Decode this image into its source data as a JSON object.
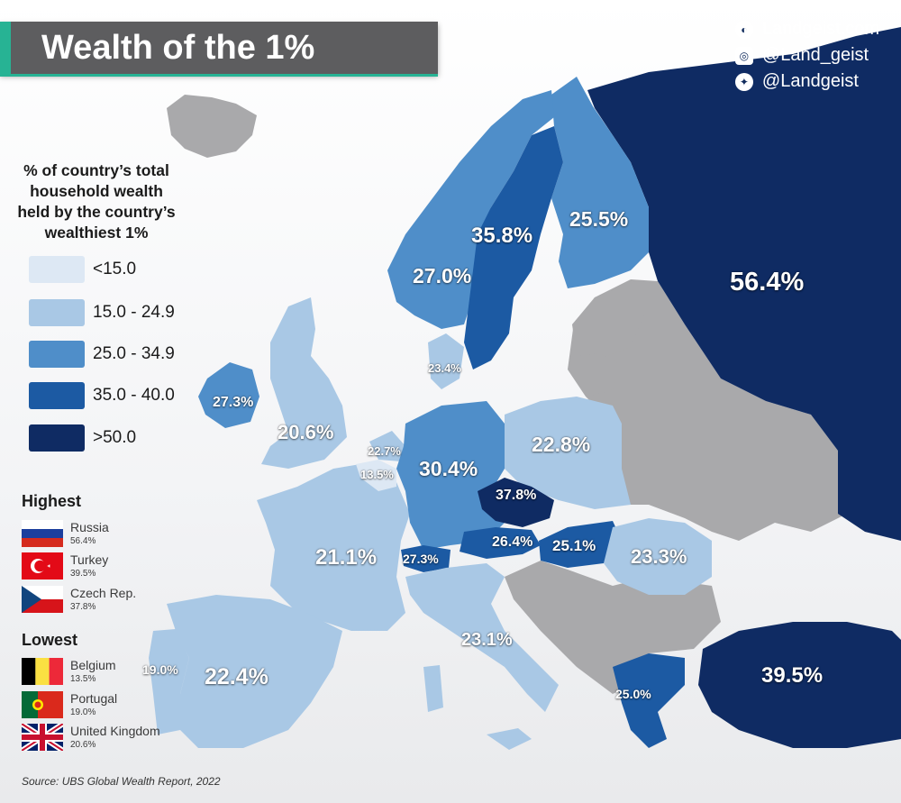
{
  "title": "Wealth of the 1%",
  "social": [
    "Landgeist.com",
    "@Land_geist",
    "@Landgeist"
  ],
  "legend": {
    "title_lines": [
      "% of country’s total",
      "household wealth",
      "held by the country’s",
      "wealthiest 1%"
    ],
    "bins": [
      {
        "label": "<15.0",
        "color": "#dde8f4"
      },
      {
        "label": "15.0 - 24.9",
        "color": "#a9c8e5"
      },
      {
        "label": "25.0 - 34.9",
        "color": "#4f8ec9"
      },
      {
        "label": "35.0 - 40.0",
        "color": "#1c5aa3"
      },
      {
        "label": ">50.0",
        "color": "#0f2b63"
      }
    ],
    "no_data_color": "#a9a9ab"
  },
  "highest": {
    "title": "Highest",
    "items": [
      {
        "country": "Russia",
        "value": "56.4%"
      },
      {
        "country": "Turkey",
        "value": "39.5%"
      },
      {
        "country": "Czech Rep.",
        "value": "37.8%"
      }
    ]
  },
  "lowest": {
    "title": "Lowest",
    "items": [
      {
        "country": "Belgium",
        "value": "13.5%"
      },
      {
        "country": "Portugal",
        "value": "19.0%"
      },
      {
        "country": "United Kingdom",
        "value": "20.6%"
      }
    ]
  },
  "map_labels": {
    "russia": "56.4%",
    "sweden": "35.8%",
    "finland": "25.5%",
    "norway": "27.0%",
    "denmark": "23.4%",
    "ireland": "27.3%",
    "uk": "20.6%",
    "netherlands": "22.7%",
    "belgium": "13.5%",
    "germany": "30.4%",
    "poland": "22.8%",
    "czech": "37.8%",
    "austria": "26.4%",
    "hungary": "25.1%",
    "switzerland": "27.3%",
    "romania": "23.3%",
    "france": "21.1%",
    "italy": "23.1%",
    "spain": "22.4%",
    "portugal": "19.0%",
    "greece": "25.0%",
    "turkey": "39.5%"
  },
  "source": "Source: UBS Global Wealth Report, 2022"
}
